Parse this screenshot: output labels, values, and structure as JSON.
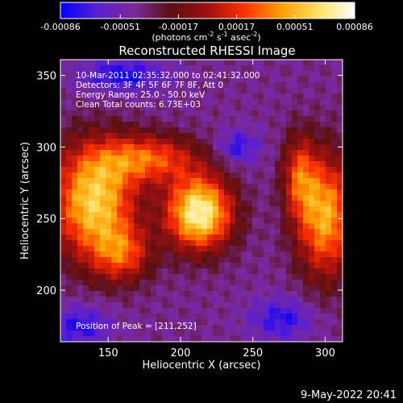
{
  "colorbar": {
    "tick_labels": [
      "-0.00086",
      "-0.00051",
      "-0.00017",
      "0.00017",
      "0.00051",
      "0.00086"
    ],
    "tick_values": [
      -0.00086,
      -0.00051,
      -0.00017,
      0.00017,
      0.00051,
      0.00086
    ],
    "range": [
      -0.00086,
      0.00086
    ],
    "stops": [
      "#0000ff",
      "#5a1fd0",
      "#7a2a9a",
      "#5a1010",
      "#a01010",
      "#ff3000",
      "#ffa000",
      "#ffe060",
      "#ffffff"
    ],
    "units_prefix": "(photons cm",
    "units_exp1": "-2",
    "units_mid": " s",
    "units_exp2": "-1",
    "units_mid2": " asec",
    "units_exp3": "-2",
    "units_suffix": ")"
  },
  "chart_data": {
    "type": "heatmap",
    "title": "Reconstructed RHESSI Image",
    "xlabel": "Heliocentric X (arcsec)",
    "ylabel": "Heliocentric Y (arcsec)",
    "xlim": [
      117,
      312
    ],
    "ylim": [
      164,
      361
    ],
    "x_ticks": [
      150,
      200,
      250,
      300
    ],
    "y_ticks": [
      200,
      250,
      300,
      350
    ],
    "annotations": {
      "line1": "10-Mar-2011 02:35:32.000 to 02:41:32.000",
      "line2": "Detectors: 3F 4F 5F 6F 7F 8F, Att 0",
      "line3": "Energy Range: 25.0 - 50.0 keV",
      "line4": "Clean     Total counts: 6.73E+03",
      "peak": "Position of Peak = [211,252]"
    },
    "peak": [
      211,
      252
    ],
    "sources": [
      {
        "x": 213,
        "y": 254,
        "sx": 16,
        "sy": 18,
        "amp": 1.0
      },
      {
        "x": 140,
        "y": 262,
        "sx": 20,
        "sy": 28,
        "amp": 0.85
      },
      {
        "x": 178,
        "y": 292,
        "sx": 24,
        "sy": 12,
        "amp": 0.55
      },
      {
        "x": 160,
        "y": 225,
        "sx": 14,
        "sy": 14,
        "amp": 0.45
      },
      {
        "x": 300,
        "y": 252,
        "sx": 14,
        "sy": 30,
        "amp": 0.75
      },
      {
        "x": 282,
        "y": 280,
        "sx": 8,
        "sy": 20,
        "amp": 0.45
      },
      {
        "x": 240,
        "y": 300,
        "sx": 10,
        "sy": 8,
        "amp": -0.3
      },
      {
        "x": 160,
        "y": 350,
        "sx": 20,
        "sy": 8,
        "amp": -0.35
      },
      {
        "x": 130,
        "y": 175,
        "sx": 15,
        "sy": 10,
        "amp": -0.3
      },
      {
        "x": 270,
        "y": 180,
        "sx": 15,
        "sy": 10,
        "amp": -0.3
      }
    ],
    "background_level": -0.12
  },
  "footer": {
    "date": "9-May-2022 20:41"
  }
}
